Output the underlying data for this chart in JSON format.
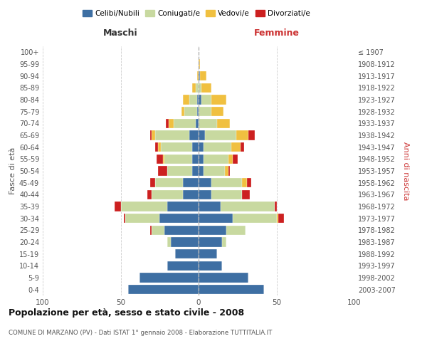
{
  "age_groups": [
    "0-4",
    "5-9",
    "10-14",
    "15-19",
    "20-24",
    "25-29",
    "30-34",
    "35-39",
    "40-44",
    "45-49",
    "50-54",
    "55-59",
    "60-64",
    "65-69",
    "70-74",
    "75-79",
    "80-84",
    "85-89",
    "90-94",
    "95-99",
    "100+"
  ],
  "birth_years": [
    "2003-2007",
    "1998-2002",
    "1993-1997",
    "1988-1992",
    "1983-1987",
    "1978-1982",
    "1973-1977",
    "1968-1972",
    "1963-1967",
    "1958-1962",
    "1953-1957",
    "1948-1952",
    "1943-1947",
    "1938-1942",
    "1933-1937",
    "1928-1932",
    "1923-1927",
    "1918-1922",
    "1913-1917",
    "1908-1912",
    "≤ 1907"
  ],
  "maschi": {
    "celibi": [
      45,
      38,
      20,
      15,
      18,
      22,
      25,
      20,
      10,
      10,
      4,
      4,
      4,
      6,
      2,
      1,
      1,
      0,
      0,
      0,
      0
    ],
    "coniugati": [
      0,
      0,
      0,
      0,
      2,
      8,
      22,
      30,
      20,
      18,
      16,
      18,
      20,
      22,
      14,
      8,
      5,
      2,
      0,
      0,
      0
    ],
    "vedovi": [
      0,
      0,
      0,
      0,
      0,
      0,
      0,
      0,
      0,
      0,
      0,
      1,
      2,
      2,
      3,
      2,
      4,
      2,
      1,
      0,
      0
    ],
    "divorziati": [
      0,
      0,
      0,
      0,
      0,
      1,
      1,
      4,
      3,
      3,
      6,
      4,
      2,
      1,
      2,
      0,
      0,
      0,
      0,
      0,
      0
    ]
  },
  "femmine": {
    "nubili": [
      42,
      32,
      15,
      12,
      15,
      18,
      22,
      14,
      8,
      8,
      3,
      3,
      3,
      4,
      0,
      0,
      2,
      0,
      1,
      0,
      0
    ],
    "coniugate": [
      0,
      0,
      0,
      0,
      3,
      12,
      28,
      35,
      20,
      20,
      14,
      16,
      18,
      20,
      12,
      8,
      6,
      2,
      0,
      0,
      0
    ],
    "vedove": [
      0,
      0,
      0,
      0,
      0,
      0,
      1,
      0,
      0,
      3,
      2,
      3,
      6,
      8,
      8,
      8,
      10,
      6,
      4,
      1,
      0
    ],
    "divorziate": [
      0,
      0,
      0,
      0,
      0,
      0,
      4,
      1,
      5,
      3,
      1,
      3,
      2,
      4,
      0,
      0,
      0,
      0,
      0,
      0,
      0
    ]
  },
  "colors": {
    "celibi": "#3e6fa3",
    "coniugati": "#c8d9a0",
    "vedovi": "#f0c040",
    "divorziati": "#cc2020"
  },
  "xlim": 100,
  "title": "Popolazione per età, sesso e stato civile - 2008",
  "subtitle": "COMUNE DI MARZANO (PV) - Dati ISTAT 1° gennaio 2008 - Elaborazione TUTTITALIA.IT",
  "ylabel_left": "Fasce di età",
  "ylabel_right": "Anni di nascita",
  "xlabel_left": "Maschi",
  "xlabel_right": "Femmine",
  "legend_labels": [
    "Celibi/Nubili",
    "Coniugati/e",
    "Vedovi/e",
    "Divorziati/e"
  ]
}
